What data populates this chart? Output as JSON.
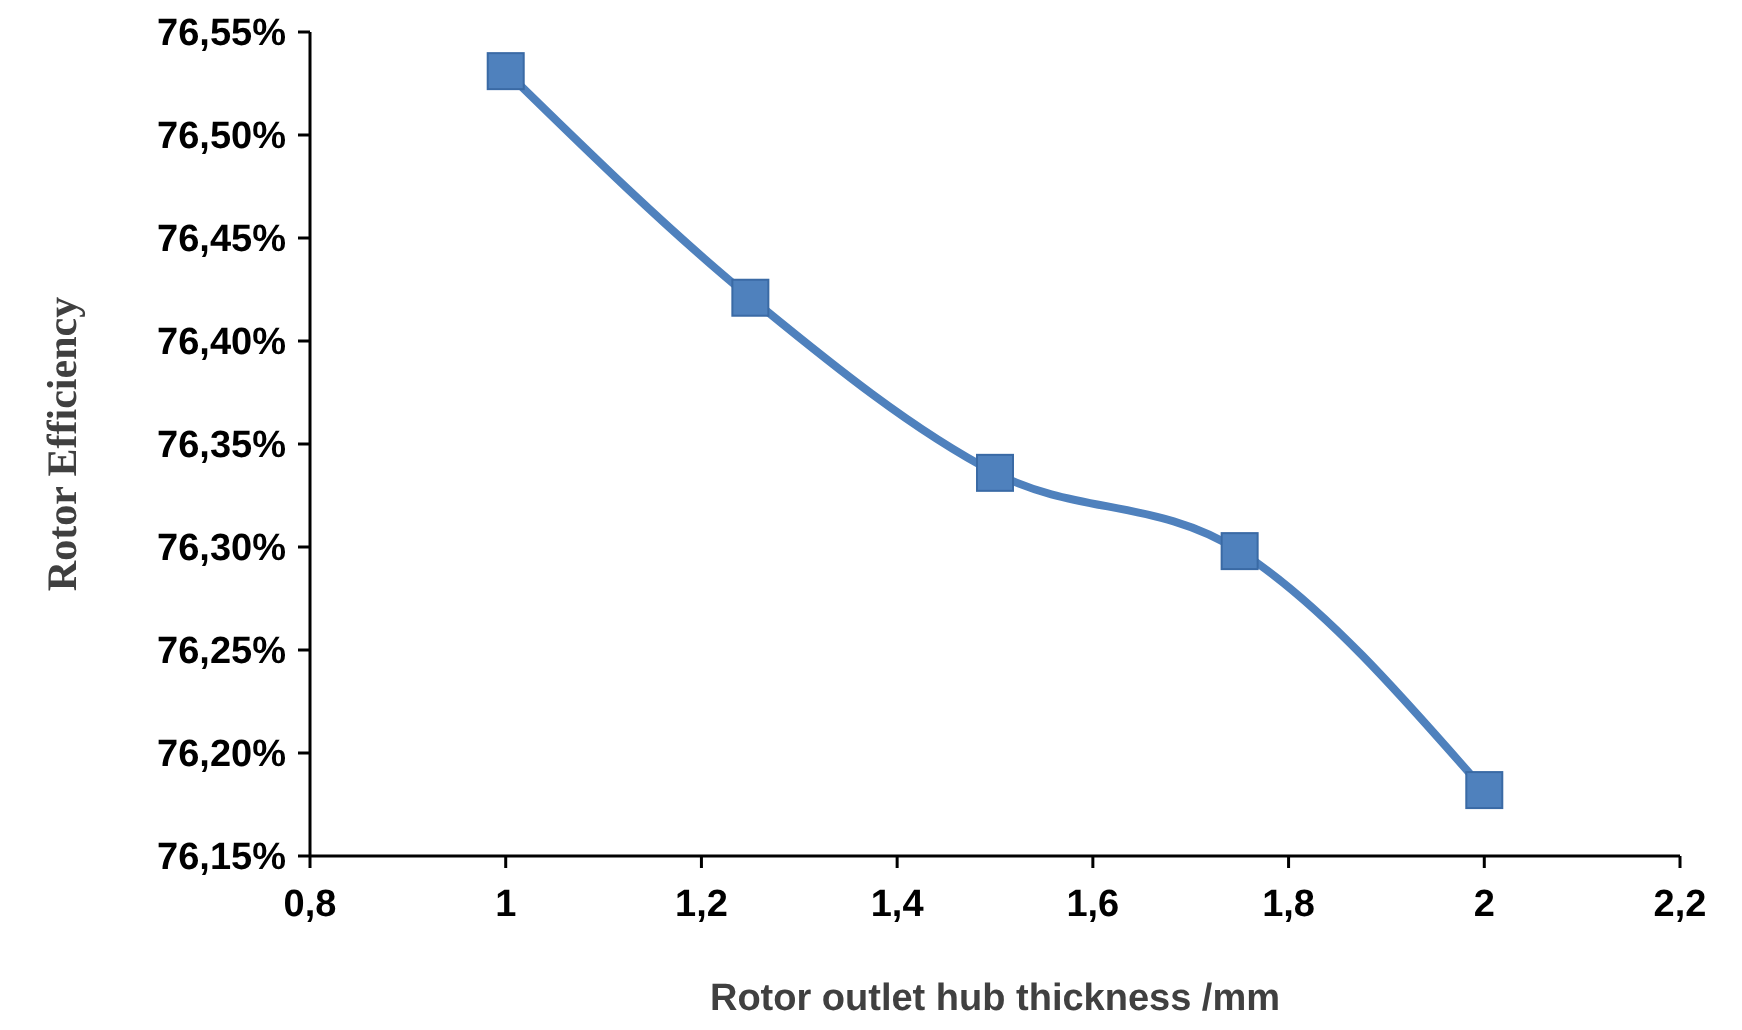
{
  "chart_data": {
    "type": "line",
    "xlabel": "Rotor outlet hub thickness /mm",
    "ylabel": "Rotor Efficiency",
    "x": [
      1,
      1.25,
      1.5,
      1.75,
      2
    ],
    "series": [
      {
        "color": "#4f81bd",
        "values": [
          76.531,
          76.421,
          76.336,
          76.298,
          76.182
        ]
      }
    ],
    "xlim": [
      0.8,
      2.2
    ],
    "xticks": [
      {
        "value": 0.8,
        "label": "0,8"
      },
      {
        "value": 1,
        "label": "1"
      },
      {
        "value": 1.2,
        "label": "1,2"
      },
      {
        "value": 1.4,
        "label": "1,4"
      },
      {
        "value": 1.6,
        "label": "1,6"
      },
      {
        "value": 1.8,
        "label": "1,8"
      },
      {
        "value": 2,
        "label": "2"
      },
      {
        "value": 2.2,
        "label": "2,2"
      }
    ],
    "ylim": [
      76.15,
      76.55
    ],
    "yticks": [
      {
        "value": 76.15,
        "label": "76,15%"
      },
      {
        "value": 76.2,
        "label": "76,20%"
      },
      {
        "value": 76.25,
        "label": "76,25%"
      },
      {
        "value": 76.3,
        "label": "76,30%"
      },
      {
        "value": 76.35,
        "label": "76,35%"
      },
      {
        "value": 76.4,
        "label": "76,40%"
      },
      {
        "value": 76.45,
        "label": "76,45%"
      },
      {
        "value": 76.5,
        "label": "76,50%"
      },
      {
        "value": 76.55,
        "label": "76,55%"
      }
    ],
    "marker": "square",
    "line_style": "solid"
  }
}
